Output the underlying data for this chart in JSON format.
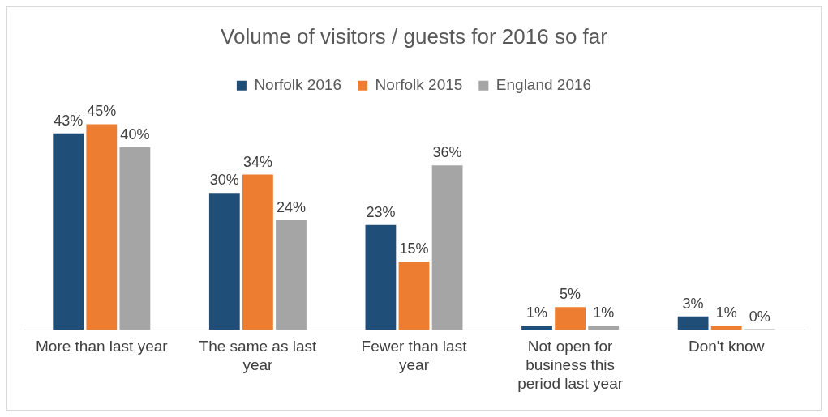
{
  "chart_data": {
    "type": "bar",
    "title": "Volume of visitors / guests for 2016 so far",
    "categories": [
      "More than last year",
      "The same as last year",
      "Fewer than last year",
      "Not open for business this period last year",
      "Don't know"
    ],
    "series": [
      {
        "name": "Norfolk 2016",
        "color": "#1f4e79",
        "values": [
          43,
          30,
          23,
          1,
          3
        ],
        "value_labels": [
          "43%",
          "30%",
          "23%",
          "1%",
          "3%"
        ]
      },
      {
        "name": "Norfolk 2015",
        "color": "#ed7d31",
        "values": [
          45,
          34,
          15,
          5,
          1
        ],
        "value_labels": [
          "45%",
          "34%",
          "15%",
          "5%",
          "1%"
        ]
      },
      {
        "name": "England 2016",
        "color": "#a5a5a5",
        "values": [
          40,
          24,
          36,
          1,
          0
        ],
        "value_labels": [
          "40%",
          "24%",
          "36%",
          "1%",
          "0%"
        ]
      }
    ],
    "legend": "top",
    "grid": false
  }
}
